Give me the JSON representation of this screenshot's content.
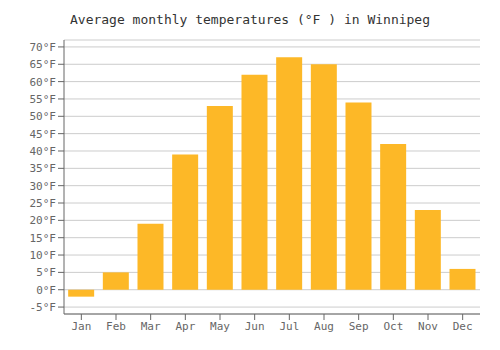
{
  "chart_data": {
    "type": "bar",
    "title": "Average monthly temperatures (°F ) in Winnipeg",
    "categories": [
      "Jan",
      "Feb",
      "Mar",
      "Apr",
      "May",
      "Jun",
      "Jul",
      "Aug",
      "Sep",
      "Oct",
      "Nov",
      "Dec"
    ],
    "values": [
      -2,
      5,
      19,
      39,
      53,
      62,
      67,
      65,
      54,
      42,
      23,
      6
    ],
    "color": "#FDB827",
    "ylim": [
      -7,
      72
    ],
    "yticks": [
      {
        "value": -5,
        "label": "-5°F"
      },
      {
        "value": 0,
        "label": "0°F"
      },
      {
        "value": 5,
        "label": "5°F"
      },
      {
        "value": 10,
        "label": "10°F"
      },
      {
        "value": 15,
        "label": "15°F"
      },
      {
        "value": 20,
        "label": "20°F"
      },
      {
        "value": 25,
        "label": "25°F"
      },
      {
        "value": 30,
        "label": "30°F"
      },
      {
        "value": 35,
        "label": "35°F"
      },
      {
        "value": 40,
        "label": "40°F"
      },
      {
        "value": 45,
        "label": "45°F"
      },
      {
        "value": 50,
        "label": "50°F"
      },
      {
        "value": 55,
        "label": "55°F"
      },
      {
        "value": 60,
        "label": "60°F"
      },
      {
        "value": 65,
        "label": "65°F"
      },
      {
        "value": 70,
        "label": "70°F"
      }
    ],
    "grid": true
  }
}
